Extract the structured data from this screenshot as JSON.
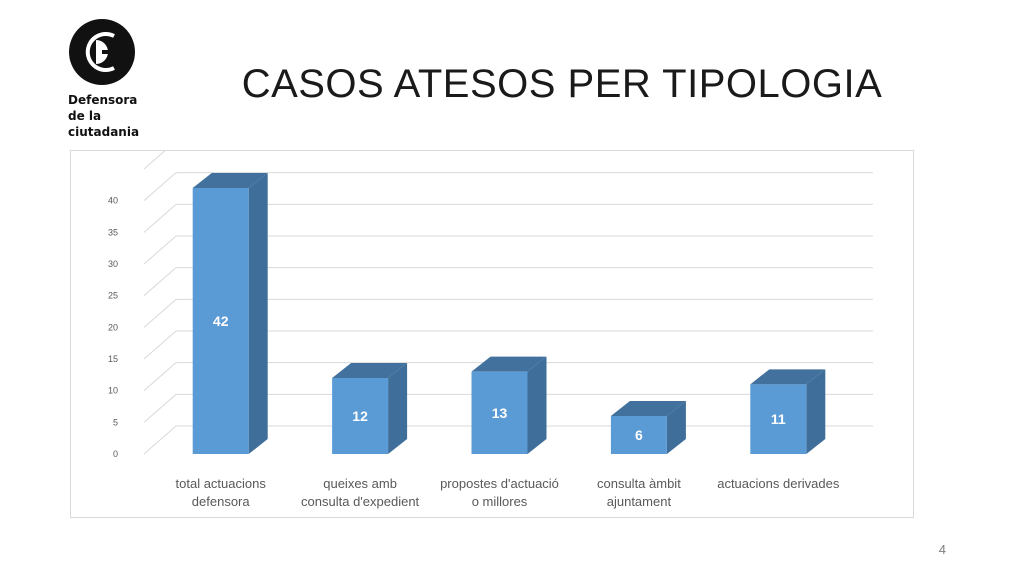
{
  "logo": {
    "lines": [
      "Defensora",
      "de la",
      "ciutadania"
    ],
    "icon": "defensora-logo-circle-icon"
  },
  "slide": {
    "title": "CASOS ATESOS PER TIPOLOGIA",
    "page_number": "4"
  },
  "colors": {
    "bar_front": "#5b9bd5",
    "bar_side": "#3e6e99",
    "bar_top": "#41719c",
    "grid": "#d9d9d9"
  },
  "chart_data": {
    "type": "bar",
    "style": "3d-column",
    "categories": [
      [
        "total actuacions",
        "defensora"
      ],
      [
        "queixes amb",
        "consulta d'expedient"
      ],
      [
        "propostes d'actuació",
        "o millores"
      ],
      [
        "consulta àmbit",
        "ajuntament"
      ],
      [
        "actuacions derivades"
      ]
    ],
    "values": [
      42,
      12,
      13,
      6,
      11
    ],
    "data_labels": [
      "42",
      "12",
      "13",
      "6",
      "11"
    ],
    "y_ticks": [
      0,
      5,
      10,
      15,
      20,
      25,
      30,
      35,
      40
    ],
    "ylim": [
      0,
      45
    ],
    "grid": true,
    "legend": "none"
  }
}
